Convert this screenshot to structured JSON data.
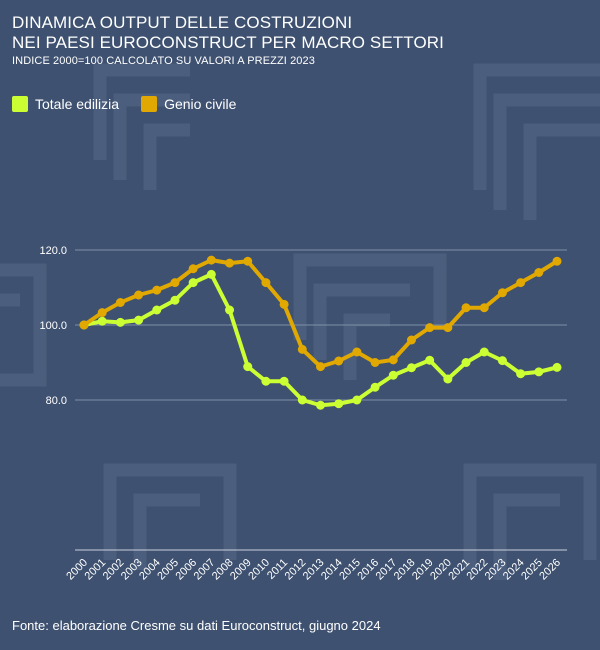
{
  "title_line1": "DINAMICA OUTPUT DELLE COSTRUZIONI",
  "title_line2": "NEI PAESI EUROCONSTRUCT PER MACRO SETTORI",
  "subtitle": "INDICE 2000=100 CALCOLATO SU VALORI A PREZZI  2023",
  "source": "Fonte: elaborazione Cresme su dati Euroconstruct, giugno 2024",
  "colors": {
    "background": "#3e5170",
    "totale": "#ccff33",
    "genio": "#e0a800",
    "grid": "#8090a8"
  },
  "chart_data": {
    "type": "line",
    "categories": [
      "2000",
      "2001",
      "2002",
      "2003",
      "2004",
      "2005",
      "2006",
      "2007",
      "2008",
      "2009",
      "2010",
      "2011",
      "2012",
      "2013",
      "2014",
      "2015",
      "2016",
      "2017",
      "2018",
      "2019",
      "2020",
      "2021",
      "2022",
      "2023",
      "2024",
      "2025",
      "2026"
    ],
    "y_ticks": [
      "120.0",
      "100.0",
      "80.0"
    ],
    "ylim": [
      40,
      120
    ],
    "grid": "horizontal",
    "legend_position": "top-left",
    "series": [
      {
        "name": "Totale edilizia",
        "color": "#ccff33",
        "values": [
          100,
          101,
          100.7,
          101.3,
          104,
          106.6,
          111.3,
          113.5,
          104,
          88.9,
          85,
          85,
          80,
          78.6,
          79,
          80,
          83.4,
          86.6,
          88.6,
          90.6,
          85.6,
          90,
          92.8,
          90.5,
          87,
          87.5,
          88.7
        ]
      },
      {
        "name": "Genio civile",
        "color": "#e0a800",
        "values": [
          100,
          103.3,
          106,
          108,
          109.3,
          111.3,
          115,
          117.3,
          116.5,
          117,
          111.3,
          105.5,
          93.5,
          88.9,
          90.4,
          92.8,
          90,
          90.7,
          96,
          99.3,
          99.3,
          104.6,
          104.6,
          108.6,
          111.3,
          114,
          117
        ]
      }
    ]
  }
}
